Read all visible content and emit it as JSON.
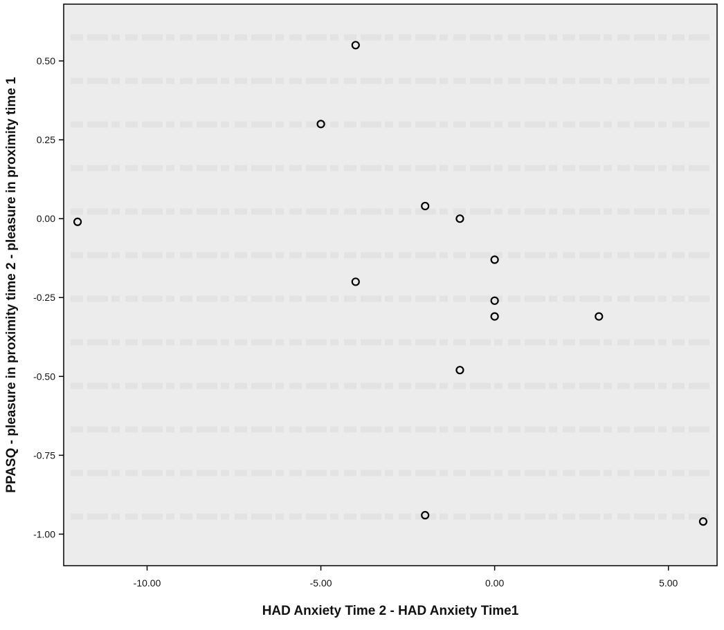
{
  "chart_data": {
    "type": "scatter",
    "title": "",
    "xlabel": "HAD Anxiety Time 2 - HAD Anxiety Time1",
    "ylabel": "PPASQ - pleasure in proximity time 2 - pleasure in proximity time 1",
    "xlim": [
      -12.4,
      6.4
    ],
    "ylim": [
      -1.1,
      0.68
    ],
    "xticks": [
      -10,
      -5,
      0,
      5
    ],
    "xtick_labels": [
      "-10.00",
      "-5.00",
      "0.00",
      "5.00"
    ],
    "yticks": [
      0.5,
      0.25,
      0.0,
      -0.25,
      -0.5,
      -0.75,
      -1.0
    ],
    "ytick_labels": [
      "0.50",
      "0.25",
      "0.00",
      "-0.25",
      "-0.50",
      "-0.75",
      "-1.00"
    ],
    "grid": false,
    "legend": "none",
    "series": [
      {
        "marker": "open-circle",
        "color": "#000000",
        "points": [
          {
            "x": -12,
            "y": -0.01
          },
          {
            "x": -4,
            "y": 0.55
          },
          {
            "x": -5,
            "y": 0.3
          },
          {
            "x": -2,
            "y": 0.04
          },
          {
            "x": -1,
            "y": 0.0
          },
          {
            "x": 0,
            "y": -0.13
          },
          {
            "x": -4,
            "y": -0.2
          },
          {
            "x": 0,
            "y": -0.26
          },
          {
            "x": 0,
            "y": -0.31
          },
          {
            "x": 3,
            "y": -0.31
          },
          {
            "x": -1,
            "y": -0.48
          },
          {
            "x": -2,
            "y": -0.94
          },
          {
            "x": 6,
            "y": -0.96
          }
        ]
      }
    ]
  },
  "colors": {
    "plot_background": "#ececec",
    "axis": "#000000",
    "page": "#ffffff"
  }
}
